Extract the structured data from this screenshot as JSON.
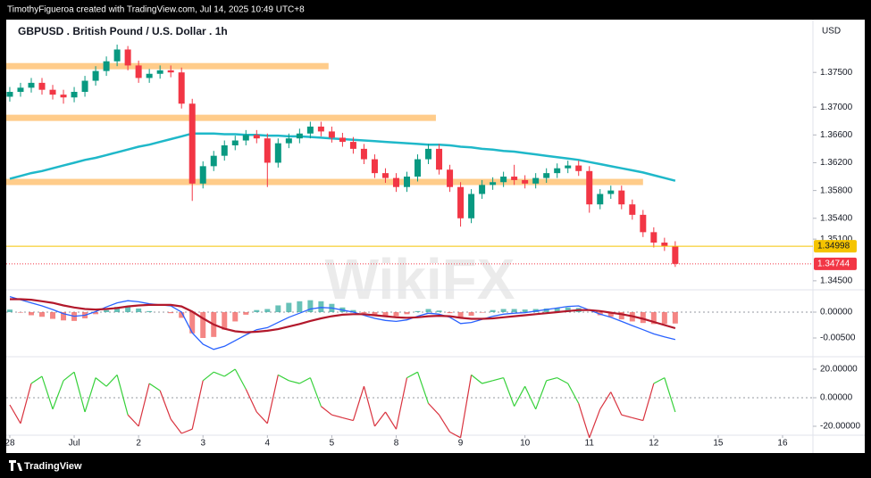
{
  "header": {
    "caption": "TimothyFigueroa created with TradingView.com, Jul 14, 2025 10:49 UTC+8",
    "brand": "TradingView",
    "watermark": "WikiFX"
  },
  "chart_data": {
    "type": "candlestick",
    "title": "GBPUSD . British Pound / U.S. Dollar . 1h",
    "currency": "USD",
    "up_color": "#089981",
    "down_color": "#f23645",
    "candles": [
      [
        1.3715,
        1.3729,
        1.3708,
        1.3722
      ],
      [
        1.3722,
        1.3735,
        1.3715,
        1.3728
      ],
      [
        1.3728,
        1.3742,
        1.3721,
        1.3735
      ],
      [
        1.3735,
        1.3742,
        1.3718,
        1.3725
      ],
      [
        1.3725,
        1.3732,
        1.3711,
        1.3718
      ],
      [
        1.3718,
        1.3725,
        1.3705,
        1.3714
      ],
      [
        1.3714,
        1.3729,
        1.3707,
        1.3722
      ],
      [
        1.3722,
        1.3745,
        1.3715,
        1.3738
      ],
      [
        1.3738,
        1.3759,
        1.3731,
        1.3752
      ],
      [
        1.3752,
        1.3773,
        1.3745,
        1.3766
      ],
      [
        1.3766,
        1.379,
        1.3759,
        1.3783
      ],
      [
        1.3783,
        1.3788,
        1.3753,
        1.376
      ],
      [
        1.376,
        1.3767,
        1.3735,
        1.3742
      ],
      [
        1.3742,
        1.3755,
        1.3735,
        1.3748
      ],
      [
        1.3748,
        1.376,
        1.3741,
        1.3753
      ],
      [
        1.3753,
        1.376,
        1.3743,
        1.375
      ],
      [
        1.375,
        1.3757,
        1.3698,
        1.3705
      ],
      [
        1.3705,
        1.3712,
        1.3565,
        1.359
      ],
      [
        1.359,
        1.3622,
        1.3583,
        1.3615
      ],
      [
        1.3615,
        1.3637,
        1.3608,
        1.363
      ],
      [
        1.363,
        1.3652,
        1.3623,
        1.3645
      ],
      [
        1.3645,
        1.3659,
        1.3638,
        1.3652
      ],
      [
        1.3652,
        1.3667,
        1.3645,
        1.366
      ],
      [
        1.366,
        1.3667,
        1.3648,
        1.3655
      ],
      [
        1.3655,
        1.3662,
        1.3585,
        1.362
      ],
      [
        1.362,
        1.3655,
        1.3613,
        1.3648
      ],
      [
        1.3648,
        1.3662,
        1.3641,
        1.3655
      ],
      [
        1.3655,
        1.3669,
        1.3648,
        1.3662
      ],
      [
        1.3662,
        1.3679,
        1.3655,
        1.3672
      ],
      [
        1.3672,
        1.3679,
        1.3658,
        1.3665
      ],
      [
        1.3665,
        1.3672,
        1.3649,
        1.3656
      ],
      [
        1.3656,
        1.3663,
        1.3643,
        1.365
      ],
      [
        1.365,
        1.3657,
        1.3633,
        1.364
      ],
      [
        1.364,
        1.3647,
        1.3618,
        1.3625
      ],
      [
        1.3625,
        1.3632,
        1.3598,
        1.3605
      ],
      [
        1.3605,
        1.3612,
        1.3591,
        1.3598
      ],
      [
        1.3598,
        1.3605,
        1.3578,
        1.3585
      ],
      [
        1.3585,
        1.3607,
        1.3578,
        1.36
      ],
      [
        1.36,
        1.3632,
        1.3593,
        1.3625
      ],
      [
        1.3625,
        1.3647,
        1.3618,
        1.364
      ],
      [
        1.364,
        1.3647,
        1.3603,
        1.361
      ],
      [
        1.361,
        1.3617,
        1.3578,
        1.3585
      ],
      [
        1.3585,
        1.3592,
        1.3528,
        1.354
      ],
      [
        1.354,
        1.3582,
        1.3533,
        1.3575
      ],
      [
        1.3575,
        1.3595,
        1.3568,
        1.3588
      ],
      [
        1.3588,
        1.3599,
        1.3581,
        1.3592
      ],
      [
        1.3592,
        1.3607,
        1.3585,
        1.36
      ],
      [
        1.36,
        1.3617,
        1.3588,
        1.3595
      ],
      [
        1.3595,
        1.3602,
        1.3583,
        1.359
      ],
      [
        1.359,
        1.3605,
        1.3583,
        1.3598
      ],
      [
        1.3598,
        1.3612,
        1.3591,
        1.3605
      ],
      [
        1.3605,
        1.3619,
        1.3598,
        1.3612
      ],
      [
        1.3612,
        1.3623,
        1.3605,
        1.3616
      ],
      [
        1.3616,
        1.3623,
        1.3601,
        1.3608
      ],
      [
        1.3608,
        1.3615,
        1.3548,
        1.356
      ],
      [
        1.356,
        1.3582,
        1.3553,
        1.3575
      ],
      [
        1.3575,
        1.3587,
        1.3568,
        1.358
      ],
      [
        1.358,
        1.3587,
        1.3553,
        1.356
      ],
      [
        1.356,
        1.3567,
        1.3538,
        1.3545
      ],
      [
        1.3545,
        1.3552,
        1.3513,
        1.352
      ],
      [
        1.352,
        1.3527,
        1.3498,
        1.3505
      ],
      [
        1.3505,
        1.3512,
        1.3493,
        1.35
      ],
      [
        1.35,
        1.3507,
        1.347,
        1.34744
      ]
    ],
    "xlim": [
      -0.33,
      74.83
    ],
    "xticks": [
      {
        "value": 0,
        "label": "28"
      },
      {
        "value": 6,
        "label": "Jul"
      },
      {
        "value": 12,
        "label": "2"
      },
      {
        "value": 18,
        "label": "3"
      },
      {
        "value": 24,
        "label": "4"
      },
      {
        "value": 30,
        "label": "5"
      },
      {
        "value": 36,
        "label": "8"
      },
      {
        "value": 42,
        "label": "9"
      },
      {
        "value": 48,
        "label": "10"
      },
      {
        "value": 54,
        "label": "11"
      },
      {
        "value": 60,
        "label": "12"
      },
      {
        "value": 66,
        "label": "15"
      },
      {
        "value": 72,
        "label": "16"
      }
    ],
    "ylim": [
      1.3437,
      1.3826
    ],
    "yticks": [
      {
        "value": 1.375,
        "label": "1.37500"
      },
      {
        "value": 1.37,
        "label": "1.37000"
      },
      {
        "value": 1.366,
        "label": "1.36600"
      },
      {
        "value": 1.362,
        "label": "1.36200"
      },
      {
        "value": 1.358,
        "label": "1.35800"
      },
      {
        "value": 1.354,
        "label": "1.35400"
      },
      {
        "value": 1.351,
        "label": "1.35100"
      },
      {
        "value": 1.345,
        "label": "1.34500"
      }
    ],
    "moving_average": {
      "color": "#1fb8c9",
      "values": [
        1.3597,
        1.3601,
        1.3605,
        1.3608,
        1.3612,
        1.3616,
        1.362,
        1.3624,
        1.3627,
        1.3631,
        1.3635,
        1.3639,
        1.3643,
        1.3646,
        1.365,
        1.3654,
        1.3658,
        1.3662,
        1.3662,
        1.3662,
        1.3661,
        1.3661,
        1.366,
        1.366,
        1.3659,
        1.3659,
        1.3658,
        1.3658,
        1.3657,
        1.3656,
        1.3655,
        1.3654,
        1.3653,
        1.3652,
        1.3651,
        1.365,
        1.3649,
        1.3648,
        1.3647,
        1.3646,
        1.3646,
        1.3645,
        1.3643,
        1.3642,
        1.364,
        1.3639,
        1.3637,
        1.3636,
        1.3634,
        1.3632,
        1.363,
        1.3628,
        1.3626,
        1.3624,
        1.3621,
        1.3618,
        1.3615,
        1.3612,
        1.3609,
        1.3606,
        1.3602,
        1.3598,
        1.3594
      ]
    },
    "zone_color": "#ffcc8a",
    "zones": [
      {
        "price": 1.3759,
        "end": 29.7
      },
      {
        "price": 1.36846,
        "end": 39.7
      },
      {
        "price": 1.35923,
        "end": 59
      }
    ],
    "price_markers": [
      {
        "value": 1.34998,
        "label": "1.34998",
        "color": "#f5c400",
        "dashed": false
      },
      {
        "value": 1.34744,
        "label": "1.34744",
        "color": "#f23645",
        "dashed": true
      }
    ],
    "macd": {
      "ylim": [
        -0.00862,
        0.00431
      ],
      "yticks": [
        {
          "value": 0,
          "label": "0.00000"
        },
        {
          "value": -0.005,
          "label": "-0.00500"
        }
      ],
      "zero_line": true,
      "macd_color": "#2962ff",
      "signal_color": "#b2182b",
      "hist_up_color": "#26a69a",
      "hist_down_color": "#ef5350",
      "macd": [
        0.003,
        0.0024,
        0.0018,
        0.0012,
        0.0005,
        -0.0003,
        -0.0008,
        -0.0006,
        0.0001,
        0.001,
        0.0018,
        0.0022,
        0.002,
        0.0016,
        0.0014,
        0.0012,
        0,
        -0.004,
        -0.0062,
        -0.0072,
        -0.0066,
        -0.0055,
        -0.0044,
        -0.0034,
        -0.003,
        -0.002,
        -0.001,
        -0.0002,
        0.0006,
        0.0009,
        0.0008,
        0.0004,
        0,
        -0.0006,
        -0.0012,
        -0.0016,
        -0.0018,
        -0.0015,
        -0.0008,
        -0.0002,
        -0.0004,
        -0.001,
        -0.0022,
        -0.002,
        -0.0014,
        -0.0008,
        -0.0004,
        -0.0002,
        -0.0001,
        0.0002,
        0.0005,
        0.0008,
        0.0011,
        0.0012,
        0.0004,
        -0.0004,
        -0.001,
        -0.0018,
        -0.0026,
        -0.0034,
        -0.0042,
        -0.0048,
        -0.0053
      ],
      "signal": [
        0.0025,
        0.0025,
        0.0024,
        0.0021,
        0.0018,
        0.0013,
        0.0009,
        0.0006,
        0.0005,
        0.0006,
        0.0008,
        0.0011,
        0.0013,
        0.0014,
        0.0014,
        0.0014,
        0.0011,
        0.0001,
        -0.0012,
        -0.0024,
        -0.0032,
        -0.0037,
        -0.0039,
        -0.0038,
        -0.0036,
        -0.0033,
        -0.0028,
        -0.0023,
        -0.0017,
        -0.0012,
        -0.0008,
        -0.0005,
        -0.0004,
        -0.0004,
        -0.0006,
        -0.0008,
        -0.001,
        -0.0011,
        -0.001,
        -0.0008,
        -0.0007,
        -0.0008,
        -0.0011,
        -0.0013,
        -0.0013,
        -0.0012,
        -0.001,
        -0.0008,
        -0.0006,
        -0.0004,
        -0.0002,
        0,
        0.0002,
        0.0004,
        0.0004,
        0.0002,
        -0.0001,
        -0.0004,
        -0.0008,
        -0.0013,
        -0.0019,
        -0.0025,
        -0.0031
      ],
      "histogram": [
        0.0005,
        -0.0001,
        -0.0006,
        -0.0009,
        -0.0013,
        -0.0016,
        -0.0017,
        -0.0012,
        -0.0004,
        0.0004,
        0.001,
        0.0011,
        0.0007,
        0.0002,
        0,
        -0.0002,
        -0.0011,
        -0.0041,
        -0.005,
        -0.0048,
        -0.0034,
        -0.0018,
        -0.0005,
        0.0004,
        0.0006,
        0.0013,
        0.0018,
        0.0021,
        0.0023,
        0.0021,
        0.0016,
        0.0009,
        0.0004,
        -0.0002,
        -0.0006,
        -0.0008,
        -0.0008,
        -0.0004,
        0.0002,
        0.0006,
        0.0003,
        -0.0002,
        -0.0011,
        -0.0007,
        -0.0001,
        0.0004,
        0.0006,
        0.0006,
        0.0005,
        0.0006,
        0.0007,
        0.0008,
        0.0009,
        0.0008,
        0,
        -0.0006,
        -0.0009,
        -0.0014,
        -0.0018,
        -0.0021,
        -0.0023,
        -0.0023,
        -0.0022
      ]
    },
    "oscillator": {
      "ylim": [
        -26.25,
        28.75
      ],
      "yticks": [
        {
          "value": 20,
          "label": "20.00000"
        },
        {
          "value": 0,
          "label": "0.00000"
        },
        {
          "value": -20,
          "label": "-20.00000"
        }
      ],
      "zero_line": true,
      "up_color": "#36d13a",
      "down_color": "#d9333f",
      "values": [
        -5,
        -18,
        10,
        15,
        -8,
        12,
        18,
        -10,
        14,
        8,
        16,
        -12,
        -20,
        10,
        5,
        -15,
        -25,
        -22,
        12,
        18,
        15,
        20,
        6,
        -10,
        -18,
        16,
        12,
        10,
        14,
        -6,
        -12,
        -14,
        -16,
        8,
        -20,
        -10,
        -22,
        14,
        18,
        -4,
        -12,
        -24,
        -28,
        16,
        10,
        12,
        14,
        -6,
        8,
        -8,
        12,
        14,
        10,
        -4,
        -28,
        -8,
        4,
        -12,
        -14,
        -16,
        10,
        14,
        -10
      ]
    }
  }
}
